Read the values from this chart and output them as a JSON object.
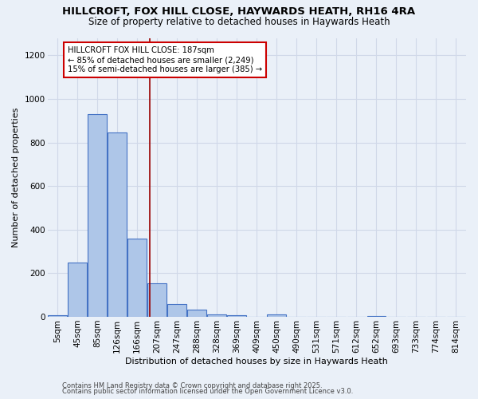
{
  "title_line1": "HILLCROFT, FOX HILL CLOSE, HAYWARDS HEATH, RH16 4RA",
  "title_line2": "Size of property relative to detached houses in Haywards Heath",
  "xlabel": "Distribution of detached houses by size in Haywards Heath",
  "ylabel": "Number of detached properties",
  "footer_line1": "Contains HM Land Registry data © Crown copyright and database right 2025.",
  "footer_line2": "Contains public sector information licensed under the Open Government Licence v3.0.",
  "bin_labels": [
    "5sqm",
    "45sqm",
    "85sqm",
    "126sqm",
    "166sqm",
    "207sqm",
    "247sqm",
    "288sqm",
    "328sqm",
    "369sqm",
    "409sqm",
    "450sqm",
    "490sqm",
    "531sqm",
    "571sqm",
    "612sqm",
    "652sqm",
    "693sqm",
    "733sqm",
    "774sqm",
    "814sqm"
  ],
  "bar_values": [
    8,
    250,
    930,
    845,
    360,
    155,
    60,
    33,
    12,
    8,
    0,
    10,
    0,
    0,
    0,
    0,
    5,
    0,
    0,
    0,
    0
  ],
  "bar_color": "#aec6e8",
  "bar_edgecolor": "#4472c4",
  "ylim": [
    0,
    1280
  ],
  "yticks": [
    0,
    200,
    400,
    600,
    800,
    1000,
    1200
  ],
  "red_line_x": 4.65,
  "annotation_text": "HILLCROFT FOX HILL CLOSE: 187sqm\n← 85% of detached houses are smaller (2,249)\n15% of semi-detached houses are larger (385) →",
  "annotation_box_color": "#ffffff",
  "annotation_box_edgecolor": "#cc0000",
  "grid_color": "#d0d8e8",
  "background_color": "#eaf0f8",
  "title_fontsize": 9.5,
  "subtitle_fontsize": 8.5,
  "axis_label_fontsize": 8.0,
  "tick_fontsize": 7.5,
  "annotation_fontsize": 7.2,
  "footer_fontsize": 6.0
}
